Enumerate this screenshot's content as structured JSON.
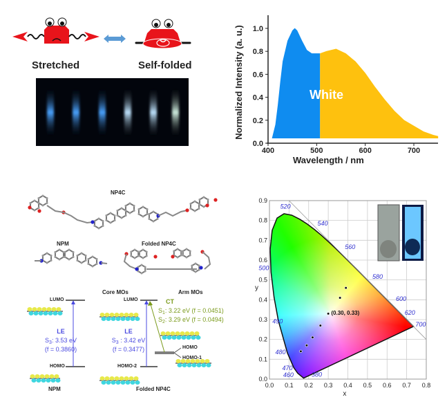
{
  "panel_a": {
    "stretched_label": "Stretched",
    "folded_label": "Self-folded",
    "colors": {
      "crab": "#e8141b",
      "arrow": "#5b9bd5"
    }
  },
  "panel_b": {
    "white_label": "White"
  },
  "panel_c": {
    "np4c_title": "NP4C",
    "npm_title": "NPM",
    "folded_title": "Folded NP4C",
    "core_mos": "Core MOs",
    "arm_mos": "Arm MOs",
    "npm": {
      "lumo": "LUMO",
      "homo": "HOMO",
      "le": "LE",
      "s3": "S",
      "s3_sub": "3",
      "s3_val": ": 3.53 eV",
      "f": "(f = 0.3860)",
      "label": "NPM"
    },
    "folded": {
      "lumo": "LUMO",
      "homo2": "HOMO-2",
      "le": "LE",
      "s3": "S",
      "s3_sub": "3",
      "s3_val": " : 3.42 eV",
      "f": "(f = 0.3477)",
      "label": "Folded NP4C"
    },
    "ct": {
      "label": "CT",
      "s1": "S",
      "s1_sub": "1",
      "s1_val": ": 3.22 eV   (f = 0.0451)",
      "s2": "S",
      "s2_sub": "2",
      "s2_val": ": 3.29 eV   (f = 0.0494)"
    },
    "homo": "HOMO",
    "homo1": "HOMO-1",
    "colors": {
      "le": "#4a4ae0",
      "ct": "#7a9a1a"
    }
  },
  "chart_data": [
    {
      "type": "area",
      "xlabel": "Wavelength / nm",
      "ylabel": "Normalized Intensity (a. u.)",
      "xlim": [
        400,
        750
      ],
      "ylim": [
        0.0,
        1.1
      ],
      "xticks": [
        "400",
        "500",
        "600",
        "700"
      ],
      "yticks": [
        "0.0",
        "0.2",
        "0.4",
        "0.6",
        "0.8",
        "1.0"
      ],
      "x": [
        408,
        415,
        420,
        425,
        430,
        440,
        450,
        455,
        460,
        470,
        480,
        490,
        500,
        507,
        520,
        540,
        560,
        580,
        600,
        620,
        640,
        660,
        680,
        700,
        720,
        740,
        750
      ],
      "y": [
        0.0,
        0.15,
        0.32,
        0.52,
        0.7,
        0.88,
        0.97,
        0.99,
        0.97,
        0.88,
        0.8,
        0.77,
        0.77,
        0.77,
        0.79,
        0.81,
        0.77,
        0.7,
        0.6,
        0.48,
        0.37,
        0.27,
        0.19,
        0.14,
        0.09,
        0.06,
        0.05
      ],
      "split_x": 507,
      "colors": {
        "blue_region": "#0f8cf0",
        "yellow_region": "#fec10e"
      },
      "grid": false
    },
    {
      "type": "scatter",
      "xlabel": "x",
      "ylabel": "y",
      "xlim": [
        0.0,
        0.8
      ],
      "ylim": [
        0.0,
        0.9
      ],
      "xticks": [
        "0.0",
        "0.1",
        "0.2",
        "0.3",
        "0.4",
        "0.5",
        "0.6",
        "0.7",
        "0.8"
      ],
      "yticks": [
        "0.0",
        "0.1",
        "0.2",
        "0.3",
        "0.4",
        "0.5",
        "0.6",
        "0.7",
        "0.8",
        "0.9"
      ],
      "grid": true,
      "wavelength_labels": [
        "380",
        "460",
        "470",
        "480",
        "490",
        "500",
        "520",
        "540",
        "560",
        "580",
        "600",
        "620",
        "700"
      ],
      "points": [
        [
          0.16,
          0.14
        ],
        [
          0.19,
          0.17
        ],
        [
          0.22,
          0.21
        ],
        [
          0.26,
          0.27
        ],
        [
          0.3,
          0.33
        ],
        [
          0.36,
          0.41
        ],
        [
          0.39,
          0.46
        ]
      ],
      "annotation": "(0.30,   0.33)"
    }
  ]
}
